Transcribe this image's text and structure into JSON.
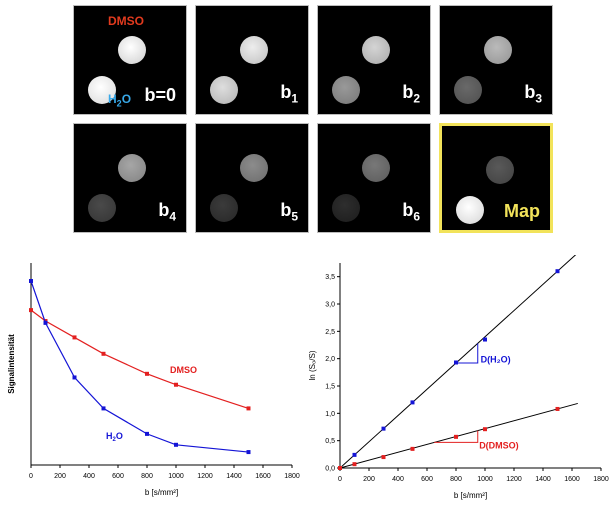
{
  "images": {
    "dmso_label": "DMSO",
    "h2o_label": "H",
    "h2o_sub": "2",
    "h2o_tail": "O",
    "tiles": [
      {
        "name": "b0",
        "label": "b=0",
        "sub": "",
        "dmso": 0.95,
        "h2o": 1.0
      },
      {
        "name": "b1",
        "label": "b",
        "sub": "1",
        "dmso": 0.88,
        "h2o": 0.82
      },
      {
        "name": "b2",
        "label": "b",
        "sub": "2",
        "dmso": 0.78,
        "h2o": 0.55
      },
      {
        "name": "b3",
        "label": "b",
        "sub": "3",
        "dmso": 0.68,
        "h2o": 0.36
      },
      {
        "name": "b4",
        "label": "b",
        "sub": "4",
        "dmso": 0.6,
        "h2o": 0.24
      },
      {
        "name": "b5",
        "label": "b",
        "sub": "5",
        "dmso": 0.5,
        "h2o": 0.18
      },
      {
        "name": "b6",
        "label": "b",
        "sub": "6",
        "dmso": 0.42,
        "h2o": 0.13
      },
      {
        "name": "map",
        "label": "Map",
        "sub": "",
        "dmso": 0.3,
        "h2o": 0.98
      }
    ]
  },
  "chart_data": [
    {
      "type": "line",
      "xlabel": "b [s/mm²]",
      "ylabel": "Signalintensität",
      "xlim": [
        0,
        1800
      ],
      "x_ticks": [
        0,
        200,
        400,
        600,
        800,
        1000,
        1200,
        1400,
        1600,
        1800
      ],
      "y_ticks_shown": false,
      "series": [
        {
          "name": "DMSO",
          "color": "#e32020",
          "x": [
            0,
            100,
            300,
            500,
            800,
            1000,
            1500
          ],
          "y": [
            0.84,
            0.78,
            0.69,
            0.6,
            0.49,
            0.43,
            0.3
          ]
        },
        {
          "name": "H2O",
          "label_main": "H",
          "label_sub": "2",
          "label_tail": "O",
          "color": "#1414d6",
          "x": [
            0,
            100,
            300,
            500,
            800,
            1000,
            1500
          ],
          "y": [
            1.0,
            0.77,
            0.47,
            0.3,
            0.16,
            0.1,
            0.06
          ]
        }
      ]
    },
    {
      "type": "scatter",
      "xlabel": "b [s/mm²]",
      "ylabel": "ln (S₀/S)",
      "xlim": [
        0,
        1800
      ],
      "ylim": [
        0,
        3.75
      ],
      "x_ticks": [
        0,
        200,
        400,
        600,
        800,
        1000,
        1200,
        1400,
        1600,
        1800
      ],
      "y_ticks": [
        "0,0",
        "0,5",
        "1,0",
        "1,5",
        "2,0",
        "2,5",
        "3,0",
        "3,5"
      ],
      "series": [
        {
          "name": "D(H2O)",
          "label": "D(H₂O)",
          "color": "#1414d6",
          "x": [
            0,
            100,
            300,
            500,
            800,
            1000,
            1500
          ],
          "y": [
            0.0,
            0.24,
            0.72,
            1.2,
            1.93,
            2.35,
            3.6
          ],
          "fit_slope": 0.0024
        },
        {
          "name": "D(DMSO)",
          "label": "D(DMSO)",
          "color": "#e32020",
          "x": [
            0,
            100,
            300,
            500,
            800,
            1000,
            1500
          ],
          "y": [
            0.0,
            0.07,
            0.2,
            0.35,
            0.57,
            0.71,
            1.08
          ],
          "fit_slope": 0.00072
        }
      ]
    }
  ]
}
